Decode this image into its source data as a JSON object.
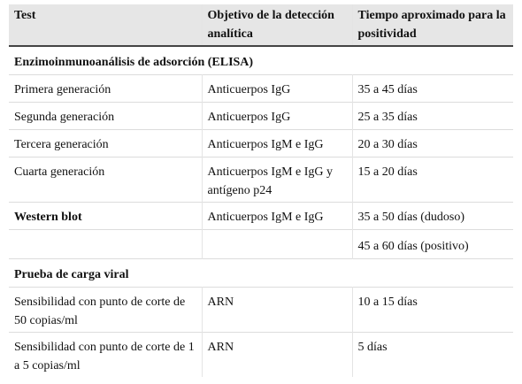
{
  "table": {
    "header": [
      "Test",
      "Objetivo de la detección analítica",
      "Tiempo aproximado para la positividad"
    ],
    "rows": [
      [
        "Enzimoinmunoanálisis de adsorción (ELISA)"
      ],
      [
        "Primera generación",
        "Anticuerpos IgG",
        "35 a 45 días"
      ],
      [
        "Segunda generación",
        "Anticuerpos IgG",
        "25 a 35 días"
      ],
      [
        "Tercera generación",
        "Anticuerpos IgM e IgG",
        "20 a 30 días"
      ],
      [
        "Cuarta generación",
        "Anticuerpos IgM e IgG y antígeno p24",
        "15 a 20 días"
      ],
      [
        "Western blot",
        "Anticuerpos IgM e IgG",
        "35 a 50 días (dudoso)"
      ],
      [
        null,
        null,
        "45 a 60 días (positivo)"
      ],
      [
        "Prueba de carga viral"
      ],
      [
        "Sensibilidad con punto de corte de 50 copias/ml",
        "ARN",
        "10 a 15 días"
      ],
      [
        "Sensibilidad con punto de corte de 1 a 5 copias/ml",
        "ARN",
        "5 días"
      ]
    ]
  }
}
